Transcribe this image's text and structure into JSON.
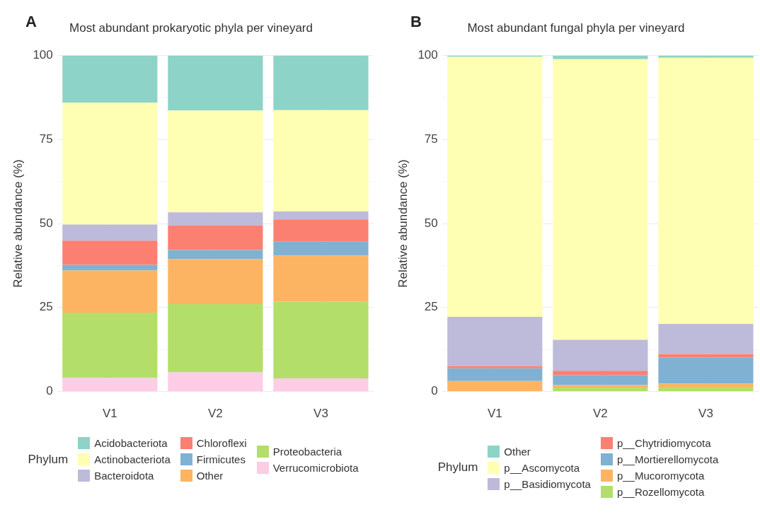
{
  "chart_data": [
    {
      "type": "bar",
      "title": "Most abundant prokaryotic phyla per vineyard",
      "annotations": [
        "A"
      ],
      "ylabel": "Relative abundance (%)",
      "legend_title": "Phylum",
      "categories": [
        "V1",
        "V2",
        "V3"
      ],
      "stacked": true,
      "ylim": [
        0,
        100
      ],
      "yticks": [
        0,
        {
          "value": 12.5,
          "label": null
        },
        25,
        {
          "value": 37.5,
          "label": null
        },
        50,
        {
          "value": 62.5,
          "label": null
        },
        75,
        {
          "value": 87.5,
          "label": null
        },
        100
      ],
      "grid": true,
      "legend": "bottom",
      "series": [
        {
          "name": "Verrucomicrobiota",
          "color": "#fccde5",
          "values": [
            4,
            5.7,
            3.9
          ]
        },
        {
          "name": "Proteobacteria",
          "color": "#b3de69",
          "values": [
            19.5,
            20.3,
            22.9
          ]
        },
        {
          "name": "Other",
          "color": "#fdb462",
          "values": [
            12.5,
            13.4,
            13.6
          ]
        },
        {
          "name": "Firmicutes",
          "color": "#80b1d3",
          "values": [
            1.7,
            2.7,
            4.2
          ]
        },
        {
          "name": "Chloroflexi",
          "color": "#fb8072",
          "values": [
            7.2,
            7.3,
            6.6
          ]
        },
        {
          "name": "Bacteroidota",
          "color": "#bebada",
          "values": [
            4.8,
            3.9,
            2.4
          ]
        },
        {
          "name": "Actinobacteriota",
          "color": "#ffffb3",
          "values": [
            36.3,
            30.3,
            30.1
          ]
        },
        {
          "name": "Acidobacteriota",
          "color": "#8dd3c7",
          "values": [
            14,
            16.4,
            16.3
          ]
        }
      ]
    },
    {
      "type": "bar",
      "title": "Most abundant fungal phyla per vineyard",
      "annotations": [
        "B"
      ],
      "ylabel": "Relative abundance (%)",
      "legend_title": "Phylum",
      "categories": [
        "V1",
        "V2",
        "V3"
      ],
      "stacked": true,
      "ylim": [
        0,
        100
      ],
      "yticks": [
        0,
        {
          "value": 12.5,
          "label": null
        },
        25,
        {
          "value": 37.5,
          "label": null
        },
        50,
        {
          "value": 62.5,
          "label": null
        },
        75,
        {
          "value": 87.5,
          "label": null
        },
        100
      ],
      "grid": true,
      "legend": "bottom",
      "series": [
        {
          "name": "p__Rozellomycota",
          "color": "#b3de69",
          "values": [
            0,
            1.2,
            1.4
          ]
        },
        {
          "name": "p__Mucoromycota",
          "color": "#fdb462",
          "values": [
            3.1,
            0.7,
            1
          ]
        },
        {
          "name": "p__Mortierellomycota",
          "color": "#80b1d3",
          "values": [
            3.8,
            3,
            7.8
          ]
        },
        {
          "name": "p__Chytridiomycota",
          "color": "#fb8072",
          "values": [
            0.7,
            1.3,
            1
          ]
        },
        {
          "name": "p__Basidiomycota",
          "color": "#bebada",
          "values": [
            14.6,
            9.2,
            8.9
          ]
        },
        {
          "name": "p__Ascomycota",
          "color": "#ffffb3",
          "values": [
            77.4,
            83.5,
            79.2
          ]
        },
        {
          "name": "Other",
          "color": "#8dd3c7",
          "values": [
            0.4,
            1.1,
            0.7
          ]
        }
      ]
    }
  ]
}
